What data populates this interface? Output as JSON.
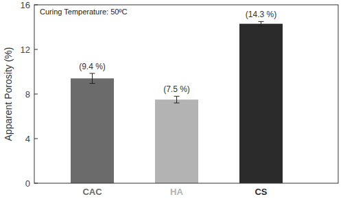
{
  "chart_data": {
    "type": "bar",
    "annotation": "Curing Temperature: 50ºC",
    "y_label": "Apparent Porosity (%)",
    "categories": [
      "CAC",
      "HA",
      "CS"
    ],
    "values": [
      9.4,
      7.5,
      14.3
    ],
    "errors": [
      0.45,
      0.3,
      0.2
    ],
    "value_labels": [
      "(9.4 %)",
      "(7.5 %)",
      "(14.3 %)"
    ],
    "data_labels": true,
    "colors": [
      "#6b6b6b",
      "#b3b3b3",
      "#2b2b2b"
    ],
    "ylim": [
      0,
      16
    ],
    "yticks": [
      0,
      4,
      8,
      12,
      16
    ],
    "grid": false
  }
}
